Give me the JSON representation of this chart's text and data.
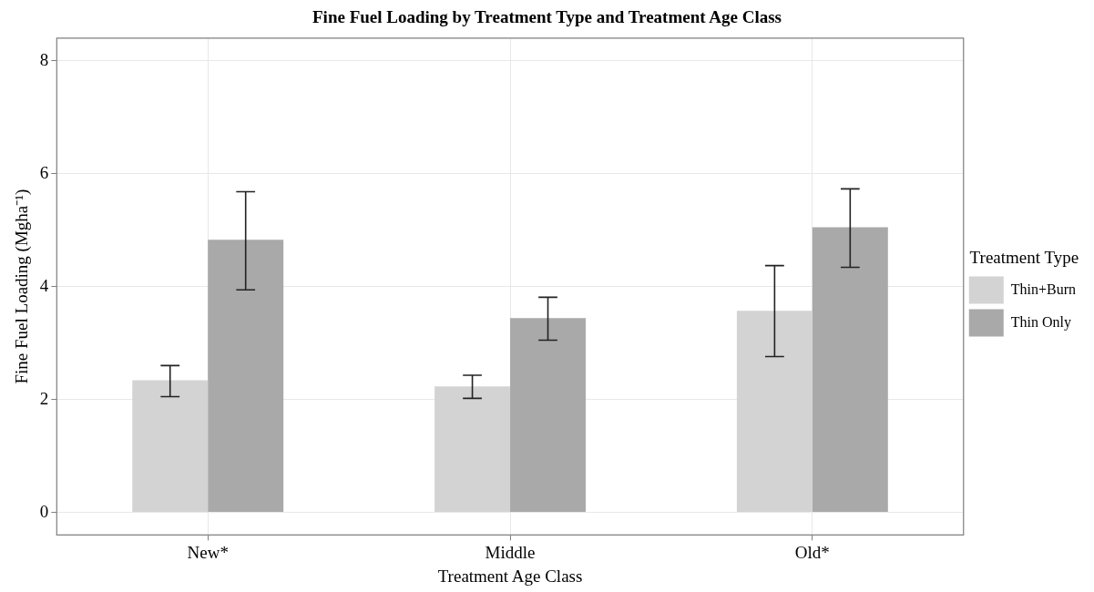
{
  "chart_data": {
    "type": "bar",
    "title": "Fine Fuel Loading by Treatment Type and Treatment Age Class",
    "xlabel": "Treatment Age Class",
    "ylabel": "Fine Fuel Loading (Mgha⁻¹)",
    "legend_title": "Treatment Type",
    "categories": [
      "New*",
      "Middle",
      "Old*"
    ],
    "series": [
      {
        "name": "Thin+Burn",
        "color": "#d3d3d3",
        "values": [
          2.34,
          2.23,
          3.57
        ],
        "errors": [
          [
            2.05,
            2.6
          ],
          [
            2.02,
            2.43
          ],
          [
            2.76,
            4.37
          ]
        ]
      },
      {
        "name": "Thin Only",
        "color": "#a9a9a9",
        "values": [
          4.83,
          3.44,
          5.05
        ],
        "errors": [
          [
            3.94,
            5.68
          ],
          [
            3.05,
            3.81
          ],
          [
            4.34,
            5.73
          ]
        ]
      }
    ],
    "ylim": [
      -0.4,
      8.4
    ],
    "yticks": [
      0,
      2,
      4,
      6,
      8
    ],
    "grid": true,
    "legend": "right"
  }
}
